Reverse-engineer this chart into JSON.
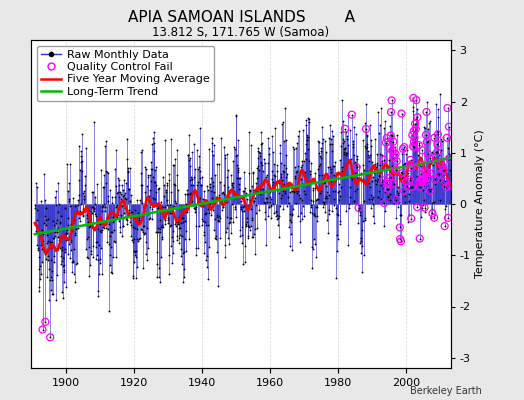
{
  "title": "APIA SAMOAN ISLANDS        A",
  "subtitle": "13.812 S, 171.765 W (Samoa)",
  "ylabel": "Temperature Anomaly (°C)",
  "credit": "Berkeley Earth",
  "xlim": [
    1890,
    2013
  ],
  "ylim": [
    -3.2,
    3.2
  ],
  "yticks": [
    -3,
    -2,
    -1,
    0,
    1,
    2,
    3
  ],
  "xticks": [
    1900,
    1920,
    1940,
    1960,
    1980,
    2000
  ],
  "year_start": 1891,
  "year_end": 2012,
  "seed": 42,
  "bg_color": "#e8e8e8",
  "plot_bg_color": "#ffffff",
  "raw_line_color": "#3333cc",
  "raw_marker_color": "#000000",
  "qc_fail_color": "#ff00ff",
  "moving_avg_color": "#ff0000",
  "trend_color": "#00bb00",
  "title_fontsize": 11,
  "subtitle_fontsize": 8.5,
  "axis_fontsize": 8,
  "legend_fontsize": 8
}
